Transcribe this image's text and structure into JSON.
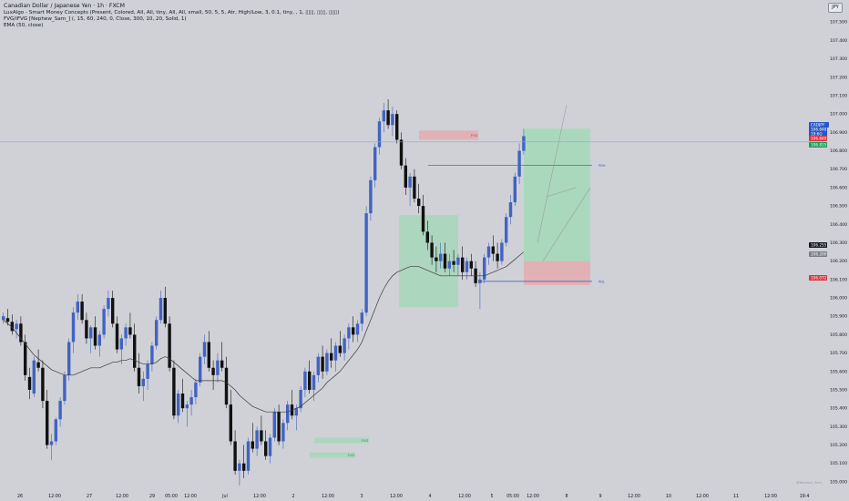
{
  "header": {
    "title": "Canadian Dollar / Japanese Yen · 1h · FXCM",
    "indicator_1": "LuxAlgo - Smart Money Concepts (Present, Colored, All, All, tiny, All, All, small, 50, 5, 5, Atr, High/Low, 3, 0.1, tiny, , 1, ▯▯▯, ▯▯▯, ▯▯▯)",
    "indicator_2": "FVG/iFVG [Nephew_Sam_] (, 15, 60, 240, 0, Close, 300, 10, 20, Solid, 1)",
    "indicator_3": "EMA (50, close)"
  },
  "currency_button": "JPY",
  "watermark": "@Nephew_Sam_",
  "colors": {
    "background": "#cfd1d6",
    "bull_candle": "#4163c2",
    "bear_candle": "#111111",
    "fvg_bull": "#9ed9b3",
    "fvg_bear": "#e7a5aa",
    "ema": "#3a3a3a",
    "smc_line": "#3556b5",
    "price_line": "#8fa4d8"
  },
  "price_tags": [
    {
      "text": "CADJPY",
      "value": 106.848,
      "bg": "#2b56c8"
    },
    {
      "text": "106.848",
      "value": 106.848,
      "bg": "#2b56c8"
    },
    {
      "text": "19:6()",
      "value": 106.848,
      "bg": "#2b56c8"
    },
    {
      "text": "106.848",
      "value": 106.848,
      "bg": "#d93545"
    },
    {
      "text": "106.815",
      "value": 106.815,
      "bg": "#1f9c5a"
    },
    {
      "text": "106.255",
      "value": 106.255,
      "bg": "#131722"
    },
    {
      "text": "106.200",
      "value": 106.2,
      "bg": "#7b7e87"
    },
    {
      "text": "106.072",
      "value": 106.072,
      "bg": "#d93545"
    }
  ],
  "chart_data": {
    "type": "candlestick",
    "symbol": "CADJPY",
    "timeframe": "1h",
    "ylim": [
      104.96,
      107.62
    ],
    "y_ticks": [
      105.0,
      105.1,
      105.2,
      105.3,
      105.4,
      105.5,
      105.6,
      105.7,
      105.8,
      105.9,
      106.0,
      106.1,
      106.2,
      106.3,
      106.4,
      106.5,
      106.6,
      106.7,
      106.8,
      106.9,
      107.0,
      107.1,
      107.2,
      107.3,
      107.4,
      107.5
    ],
    "x_labels": [
      "26",
      "12:00",
      "27",
      "12:00",
      "29",
      "05:00",
      "12:00",
      "Jul",
      "12:00",
      "2",
      "12:00",
      "3",
      "12:00",
      "4",
      "12:00",
      "5",
      "05:00",
      "12:00",
      "8",
      "9",
      "12:00",
      "10",
      "12:00",
      "11",
      "12:00",
      "19:4"
    ],
    "last_price": 106.848,
    "series": [
      {
        "name": "EMA",
        "values": []
      }
    ],
    "candles": [
      [
        105.88,
        105.92,
        105.86,
        105.9
      ],
      [
        105.89,
        105.94,
        105.85,
        105.87
      ],
      [
        105.87,
        105.91,
        105.8,
        105.82
      ],
      [
        105.83,
        105.88,
        105.78,
        105.86
      ],
      [
        105.86,
        105.9,
        105.74,
        105.76
      ],
      [
        105.76,
        105.8,
        105.55,
        105.58
      ],
      [
        105.57,
        105.62,
        105.45,
        105.5
      ],
      [
        105.48,
        105.68,
        105.46,
        105.66
      ],
      [
        105.65,
        105.72,
        105.6,
        105.62
      ],
      [
        105.62,
        105.66,
        105.4,
        105.44
      ],
      [
        105.44,
        105.5,
        105.18,
        105.2
      ],
      [
        105.2,
        105.26,
        105.12,
        105.22
      ],
      [
        105.22,
        105.35,
        105.2,
        105.34
      ],
      [
        105.34,
        105.46,
        105.3,
        105.44
      ],
      [
        105.44,
        105.6,
        105.42,
        105.58
      ],
      [
        105.58,
        105.78,
        105.55,
        105.76
      ],
      [
        105.76,
        105.95,
        105.7,
        105.92
      ],
      [
        105.92,
        106.02,
        105.88,
        105.98
      ],
      [
        105.98,
        106.02,
        105.86,
        105.88
      ],
      [
        105.88,
        105.92,
        105.75,
        105.78
      ],
      [
        105.78,
        105.85,
        105.7,
        105.84
      ],
      [
        105.84,
        105.9,
        105.72,
        105.74
      ],
      [
        105.74,
        105.82,
        105.68,
        105.8
      ],
      [
        105.8,
        105.96,
        105.78,
        105.94
      ],
      [
        105.94,
        106.04,
        105.9,
        106.0
      ],
      [
        106.0,
        106.04,
        105.84,
        105.86
      ],
      [
        105.86,
        105.9,
        105.7,
        105.72
      ],
      [
        105.72,
        105.8,
        105.64,
        105.78
      ],
      [
        105.78,
        105.86,
        105.74,
        105.84
      ],
      [
        105.84,
        105.92,
        105.78,
        105.8
      ],
      [
        105.8,
        105.86,
        105.6,
        105.62
      ],
      [
        105.62,
        105.7,
        105.48,
        105.52
      ],
      [
        105.52,
        105.6,
        105.44,
        105.56
      ],
      [
        105.56,
        105.66,
        105.5,
        105.64
      ],
      [
        105.64,
        105.76,
        105.6,
        105.74
      ],
      [
        105.74,
        105.9,
        105.72,
        105.88
      ],
      [
        105.88,
        106.04,
        105.86,
        106.0
      ],
      [
        106.0,
        106.06,
        105.84,
        105.86
      ],
      [
        105.86,
        105.9,
        105.6,
        105.62
      ],
      [
        105.62,
        105.66,
        105.34,
        105.36
      ],
      [
        105.36,
        105.5,
        105.32,
        105.48
      ],
      [
        105.48,
        105.56,
        105.38,
        105.4
      ],
      [
        105.4,
        105.44,
        105.3,
        105.42
      ],
      [
        105.42,
        105.5,
        105.36,
        105.46
      ],
      [
        105.46,
        105.56,
        105.42,
        105.54
      ],
      [
        105.54,
        105.7,
        105.52,
        105.68
      ],
      [
        105.68,
        105.8,
        105.64,
        105.76
      ],
      [
        105.76,
        105.82,
        105.6,
        105.62
      ],
      [
        105.62,
        105.66,
        105.5,
        105.58
      ],
      [
        105.58,
        105.7,
        105.54,
        105.66
      ],
      [
        105.66,
        105.76,
        105.6,
        105.62
      ],
      [
        105.62,
        105.68,
        105.4,
        105.42
      ],
      [
        105.42,
        105.5,
        105.2,
        105.22
      ],
      [
        105.22,
        105.28,
        105.04,
        105.06
      ],
      [
        105.06,
        105.12,
        104.98,
        105.1
      ],
      [
        105.1,
        105.2,
        105.02,
        105.06
      ],
      [
        105.06,
        105.24,
        105.04,
        105.22
      ],
      [
        105.22,
        105.32,
        105.16,
        105.18
      ],
      [
        105.18,
        105.3,
        105.14,
        105.28
      ],
      [
        105.28,
        105.36,
        105.2,
        105.22
      ],
      [
        105.22,
        105.28,
        105.12,
        105.14
      ],
      [
        105.14,
        105.26,
        105.1,
        105.24
      ],
      [
        105.24,
        105.4,
        105.22,
        105.38
      ],
      [
        105.38,
        105.42,
        105.2,
        105.22
      ],
      [
        105.22,
        105.34,
        105.18,
        105.32
      ],
      [
        105.32,
        105.44,
        105.28,
        105.42
      ],
      [
        105.42,
        105.5,
        105.34,
        105.36
      ],
      [
        105.36,
        105.42,
        105.28,
        105.4
      ],
      [
        105.4,
        105.52,
        105.38,
        105.5
      ],
      [
        105.5,
        105.62,
        105.46,
        105.6
      ],
      [
        105.6,
        105.66,
        105.48,
        105.5
      ],
      [
        105.5,
        105.6,
        105.44,
        105.58
      ],
      [
        105.58,
        105.7,
        105.54,
        105.68
      ],
      [
        105.68,
        105.74,
        105.56,
        105.6
      ],
      [
        105.6,
        105.72,
        105.58,
        105.7
      ],
      [
        105.7,
        105.78,
        105.62,
        105.66
      ],
      [
        105.66,
        105.76,
        105.6,
        105.74
      ],
      [
        105.74,
        105.82,
        105.68,
        105.7
      ],
      [
        105.7,
        105.8,
        105.66,
        105.78
      ],
      [
        105.78,
        105.86,
        105.72,
        105.84
      ],
      [
        105.84,
        105.9,
        105.76,
        105.8
      ],
      [
        105.8,
        105.88,
        105.76,
        105.86
      ],
      [
        105.86,
        105.94,
        105.82,
        105.92
      ],
      [
        105.92,
        106.5,
        105.9,
        106.46
      ],
      [
        106.46,
        106.66,
        106.42,
        106.64
      ],
      [
        106.64,
        106.84,
        106.6,
        106.82
      ],
      [
        106.82,
        106.98,
        106.78,
        106.96
      ],
      [
        106.96,
        107.06,
        106.9,
        107.02
      ],
      [
        107.02,
        107.08,
        106.92,
        106.94
      ],
      [
        106.94,
        107.04,
        106.88,
        107.0
      ],
      [
        107.0,
        107.02,
        106.84,
        106.86
      ],
      [
        106.86,
        106.9,
        106.7,
        106.72
      ],
      [
        106.72,
        106.76,
        106.56,
        106.6
      ],
      [
        106.6,
        106.68,
        106.5,
        106.66
      ],
      [
        106.66,
        106.7,
        106.52,
        106.54
      ],
      [
        106.54,
        106.62,
        106.46,
        106.5
      ],
      [
        106.5,
        106.56,
        106.34,
        106.36
      ],
      [
        106.36,
        106.42,
        106.26,
        106.3
      ],
      [
        106.3,
        106.34,
        106.18,
        106.22
      ],
      [
        106.22,
        106.28,
        106.14,
        106.2
      ],
      [
        106.2,
        106.3,
        106.16,
        106.24
      ],
      [
        106.24,
        106.3,
        106.14,
        106.16
      ],
      [
        106.16,
        106.24,
        106.12,
        106.2
      ],
      [
        106.2,
        106.26,
        106.14,
        106.18
      ],
      [
        106.18,
        106.24,
        106.12,
        106.22
      ],
      [
        106.22,
        106.28,
        106.1,
        106.14
      ],
      [
        106.14,
        106.22,
        106.1,
        106.2
      ],
      [
        106.2,
        106.24,
        106.12,
        106.16
      ],
      [
        106.16,
        106.2,
        106.06,
        106.08
      ],
      [
        106.08,
        106.14,
        105.94,
        106.1
      ],
      [
        106.1,
        106.24,
        106.08,
        106.22
      ],
      [
        106.22,
        106.3,
        106.18,
        106.28
      ],
      [
        106.28,
        106.34,
        106.2,
        106.24
      ],
      [
        106.24,
        106.3,
        106.16,
        106.2
      ],
      [
        106.2,
        106.32,
        106.18,
        106.3
      ],
      [
        106.3,
        106.46,
        106.28,
        106.44
      ],
      [
        106.44,
        106.56,
        106.4,
        106.52
      ],
      [
        106.52,
        106.68,
        106.5,
        106.66
      ],
      [
        106.66,
        106.84,
        106.62,
        106.8
      ],
      [
        106.8,
        106.92,
        106.78,
        106.88
      ]
    ],
    "ema_values": [
      105.88,
      105.86,
      105.84,
      105.81,
      105.78,
      105.75,
      105.72,
      105.69,
      105.67,
      105.65,
      105.63,
      105.61,
      105.6,
      105.59,
      105.58,
      105.58,
      105.58,
      105.59,
      105.6,
      105.61,
      105.62,
      105.62,
      105.62,
      105.63,
      105.64,
      105.65,
      105.65,
      105.66,
      105.66,
      105.67,
      105.66,
      105.65,
      105.64,
      105.64,
      105.64,
      105.65,
      105.67,
      105.68,
      105.67,
      105.65,
      105.63,
      105.61,
      105.59,
      105.57,
      105.55,
      105.55,
      105.55,
      105.55,
      105.55,
      105.55,
      105.55,
      105.54,
      105.52,
      105.5,
      105.47,
      105.45,
      105.43,
      105.41,
      105.4,
      105.39,
      105.38,
      105.38,
      105.38,
      105.38,
      105.38,
      105.38,
      105.39,
      105.4,
      105.41,
      105.43,
      105.45,
      105.47,
      105.49,
      105.51,
      105.54,
      105.56,
      105.58,
      105.6,
      105.63,
      105.66,
      105.69,
      105.72,
      105.76,
      105.82,
      105.88,
      105.94,
      106.0,
      106.05,
      106.09,
      106.12,
      106.14,
      106.15,
      106.16,
      106.17,
      106.17,
      106.17,
      106.16,
      106.15,
      106.14,
      106.13,
      106.12,
      106.12,
      106.12,
      106.12,
      106.12,
      106.12,
      106.12,
      106.12,
      106.12,
      106.12,
      106.12,
      106.13,
      106.14,
      106.15,
      106.16,
      106.17,
      106.19,
      106.21,
      106.23,
      106.25
    ],
    "fvg_zones": [
      {
        "type": "bear",
        "from": 106.86,
        "to": 106.91,
        "label": "FVG"
      },
      {
        "type": "bull",
        "from": 105.95,
        "to": 106.45,
        "label": ""
      },
      {
        "type": "bull",
        "from": 105.21,
        "to": 105.24,
        "label": "FVG"
      },
      {
        "type": "bull",
        "from": 105.13,
        "to": 105.16,
        "label": "FVG"
      },
      {
        "type": "bear",
        "from": 106.07,
        "to": 106.2,
        "label": ""
      },
      {
        "type": "bull",
        "from": 106.2,
        "to": 106.92,
        "label": ""
      }
    ],
    "smc_levels": [
      {
        "price": 106.72,
        "label": "PDH"
      },
      {
        "price": 106.09,
        "label": "PDL"
      }
    ],
    "small_labels": [
      "FVG",
      "FVG",
      "FVG",
      "FVG",
      "FVG"
    ]
  }
}
